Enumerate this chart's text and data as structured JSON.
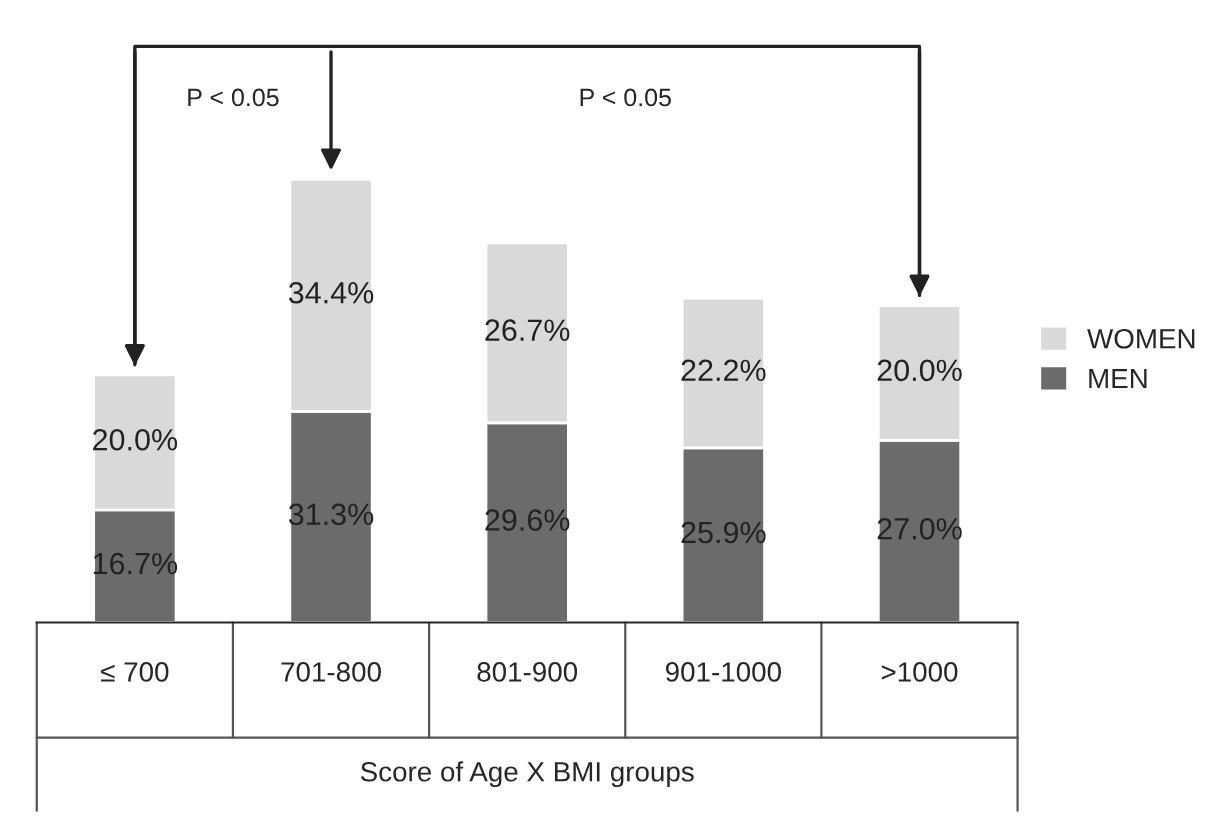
{
  "chart_data": {
    "type": "bar",
    "stacked": true,
    "categories": [
      "≤ 700",
      "701-800",
      "801-900",
      "901-1000",
      ">1000"
    ],
    "series": [
      {
        "name": "MEN",
        "color": "#6b6b6b",
        "values": [
          16.7,
          31.3,
          29.6,
          25.9,
          27.0
        ],
        "value_labels": [
          "16.7%",
          "31.3%",
          "29.6%",
          "25.9%",
          "27.0%"
        ]
      },
      {
        "name": "WOMEN",
        "color": "#d9d9d9",
        "values": [
          20.0,
          34.4,
          26.7,
          22.2,
          20.0
        ],
        "value_labels": [
          "20.0%",
          "34.4%",
          "26.7%",
          "22.2%",
          "20.0%"
        ]
      }
    ],
    "xlabel": "Score of Age X BMI groups",
    "annotations": [
      "P < 0.05",
      "P < 0.05"
    ],
    "legend": "right",
    "grid": false
  }
}
